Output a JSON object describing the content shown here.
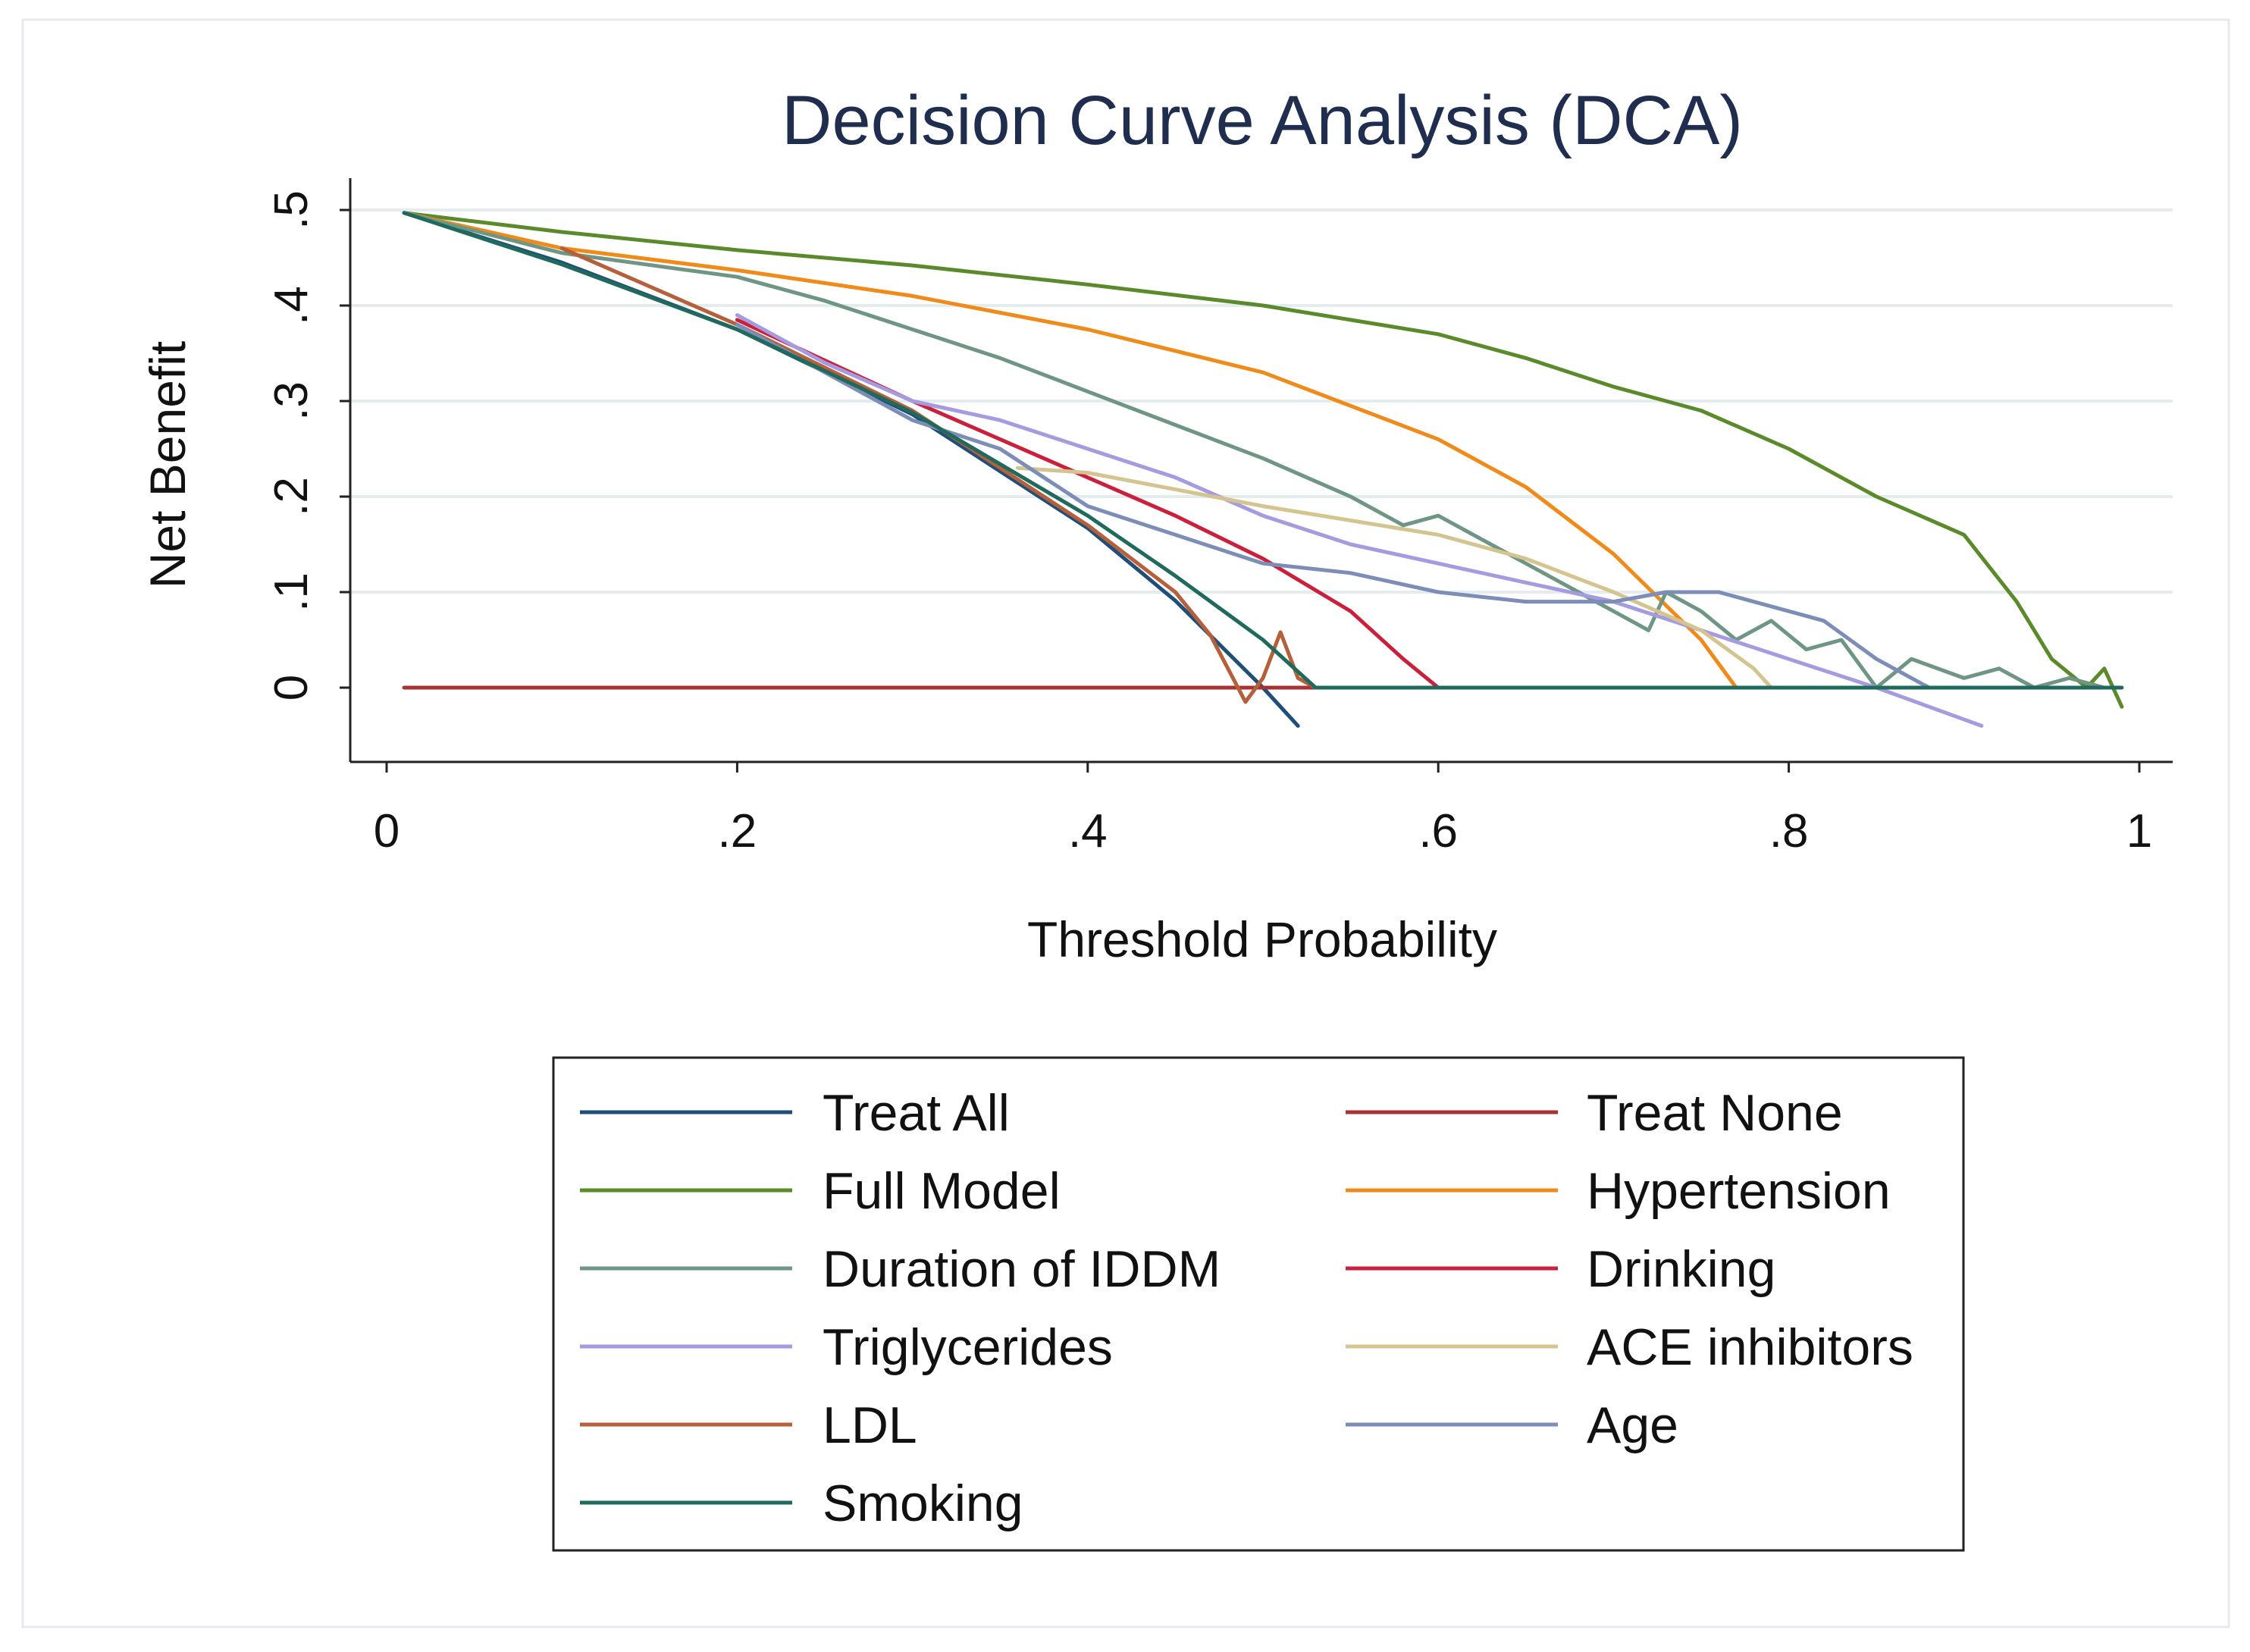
{
  "chart_data": {
    "type": "line",
    "title": "Decision Curve Analysis (DCA)",
    "xlabel": "Threshold Probability",
    "ylabel": "Net Benefit",
    "xlim": [
      0,
      1
    ],
    "ylim": [
      -0.08,
      0.52
    ],
    "xticks": [
      {
        "value": 0,
        "label": "0"
      },
      {
        "value": 0.2,
        "label": ".2"
      },
      {
        "value": 0.4,
        "label": ".4"
      },
      {
        "value": 0.6,
        "label": ".6"
      },
      {
        "value": 0.8,
        "label": ".8"
      },
      {
        "value": 1,
        "label": "1"
      }
    ],
    "yticks": [
      {
        "value": 0,
        "label": "0"
      },
      {
        "value": 0.1,
        "label": ".1"
      },
      {
        "value": 0.2,
        "label": ".2"
      },
      {
        "value": 0.3,
        "label": ".3"
      },
      {
        "value": 0.4,
        "label": ".4"
      },
      {
        "value": 0.5,
        "label": ".5"
      }
    ],
    "grid": "horizontal",
    "legend_position": "bottom",
    "series": [
      {
        "name": "Treat All",
        "color": "#1f4e79",
        "points": [
          [
            0.01,
            0.497
          ],
          [
            0.1,
            0.445
          ],
          [
            0.2,
            0.375
          ],
          [
            0.3,
            0.286
          ],
          [
            0.4,
            0.167
          ],
          [
            0.45,
            0.091
          ],
          [
            0.5,
            0.0
          ],
          [
            0.52,
            -0.04
          ]
        ]
      },
      {
        "name": "Treat None",
        "color": "#a83232",
        "points": [
          [
            0.01,
            0
          ],
          [
            0.53,
            0
          ]
        ]
      },
      {
        "name": "Full Model",
        "color": "#5a8a2a",
        "points": [
          [
            0.01,
            0.497
          ],
          [
            0.1,
            0.477
          ],
          [
            0.2,
            0.458
          ],
          [
            0.3,
            0.442
          ],
          [
            0.4,
            0.422
          ],
          [
            0.5,
            0.4
          ],
          [
            0.6,
            0.37
          ],
          [
            0.65,
            0.345
          ],
          [
            0.7,
            0.315
          ],
          [
            0.75,
            0.29
          ],
          [
            0.8,
            0.25
          ],
          [
            0.85,
            0.2
          ],
          [
            0.9,
            0.16
          ],
          [
            0.93,
            0.09
          ],
          [
            0.95,
            0.03
          ],
          [
            0.97,
            0.0
          ],
          [
            0.98,
            0.02
          ],
          [
            0.99,
            -0.02
          ]
        ]
      },
      {
        "name": "Hypertension",
        "color": "#f08a18",
        "points": [
          [
            0.01,
            0.497
          ],
          [
            0.1,
            0.46
          ],
          [
            0.2,
            0.437
          ],
          [
            0.3,
            0.41
          ],
          [
            0.4,
            0.375
          ],
          [
            0.5,
            0.33
          ],
          [
            0.6,
            0.26
          ],
          [
            0.65,
            0.21
          ],
          [
            0.7,
            0.14
          ],
          [
            0.75,
            0.05
          ],
          [
            0.77,
            0.0
          ],
          [
            0.78,
            0.0
          ]
        ]
      },
      {
        "name": "Duration of IDDM",
        "color": "#6f9684",
        "points": [
          [
            0.01,
            0.497
          ],
          [
            0.1,
            0.455
          ],
          [
            0.2,
            0.43
          ],
          [
            0.25,
            0.405
          ],
          [
            0.3,
            0.375
          ],
          [
            0.35,
            0.345
          ],
          [
            0.4,
            0.31
          ],
          [
            0.45,
            0.275
          ],
          [
            0.5,
            0.24
          ],
          [
            0.55,
            0.2
          ],
          [
            0.58,
            0.17
          ],
          [
            0.6,
            0.18
          ],
          [
            0.63,
            0.15
          ],
          [
            0.65,
            0.13
          ],
          [
            0.68,
            0.1
          ],
          [
            0.7,
            0.08
          ],
          [
            0.72,
            0.06
          ],
          [
            0.73,
            0.1
          ],
          [
            0.75,
            0.08
          ],
          [
            0.77,
            0.05
          ],
          [
            0.79,
            0.07
          ],
          [
            0.81,
            0.04
          ],
          [
            0.83,
            0.05
          ],
          [
            0.85,
            0.0
          ],
          [
            0.87,
            0.03
          ],
          [
            0.9,
            0.01
          ],
          [
            0.92,
            0.02
          ],
          [
            0.94,
            0.0
          ],
          [
            0.96,
            0.01
          ],
          [
            0.98,
            0.0
          ]
        ]
      },
      {
        "name": "Drinking",
        "color": "#cc1f3c",
        "points": [
          [
            0.2,
            0.385
          ],
          [
            0.3,
            0.3
          ],
          [
            0.4,
            0.22
          ],
          [
            0.45,
            0.18
          ],
          [
            0.5,
            0.135
          ],
          [
            0.55,
            0.08
          ],
          [
            0.58,
            0.03
          ],
          [
            0.6,
            0.0
          ]
        ]
      },
      {
        "name": "Triglycerides",
        "color": "#a69be0",
        "points": [
          [
            0.2,
            0.39
          ],
          [
            0.25,
            0.34
          ],
          [
            0.3,
            0.3
          ],
          [
            0.35,
            0.28
          ],
          [
            0.4,
            0.25
          ],
          [
            0.45,
            0.22
          ],
          [
            0.5,
            0.18
          ],
          [
            0.55,
            0.15
          ],
          [
            0.6,
            0.13
          ],
          [
            0.65,
            0.11
          ],
          [
            0.7,
            0.09
          ],
          [
            0.75,
            0.06
          ],
          [
            0.8,
            0.03
          ],
          [
            0.85,
            0.0
          ],
          [
            0.88,
            -0.02
          ],
          [
            0.91,
            -0.04
          ]
        ]
      },
      {
        "name": "ACE inhibitors",
        "color": "#d4c48f",
        "points": [
          [
            0.36,
            0.23
          ],
          [
            0.4,
            0.225
          ],
          [
            0.5,
            0.19
          ],
          [
            0.6,
            0.16
          ],
          [
            0.65,
            0.135
          ],
          [
            0.7,
            0.1
          ],
          [
            0.75,
            0.06
          ],
          [
            0.78,
            0.02
          ],
          [
            0.79,
            0.0
          ]
        ]
      },
      {
        "name": "LDL",
        "color": "#b5603a",
        "points": [
          [
            0.1,
            0.46
          ],
          [
            0.2,
            0.38
          ],
          [
            0.3,
            0.29
          ],
          [
            0.4,
            0.17
          ],
          [
            0.45,
            0.1
          ],
          [
            0.47,
            0.055
          ],
          [
            0.48,
            0.02
          ],
          [
            0.49,
            -0.015
          ],
          [
            0.5,
            0.01
          ],
          [
            0.51,
            0.058
          ],
          [
            0.52,
            0.01
          ],
          [
            0.53,
            0.0
          ]
        ]
      },
      {
        "name": "Age",
        "color": "#7c8db8",
        "points": [
          [
            0.2,
            0.38
          ],
          [
            0.3,
            0.28
          ],
          [
            0.35,
            0.25
          ],
          [
            0.4,
            0.19
          ],
          [
            0.45,
            0.16
          ],
          [
            0.5,
            0.13
          ],
          [
            0.55,
            0.12
          ],
          [
            0.6,
            0.1
          ],
          [
            0.65,
            0.09
          ],
          [
            0.7,
            0.09
          ],
          [
            0.73,
            0.1
          ],
          [
            0.76,
            0.1
          ],
          [
            0.8,
            0.08
          ],
          [
            0.82,
            0.07
          ],
          [
            0.85,
            0.03
          ],
          [
            0.88,
            0.0
          ],
          [
            0.9,
            0.0
          ]
        ]
      },
      {
        "name": "Smoking",
        "color": "#1f6a5c",
        "points": [
          [
            0.01,
            0.497
          ],
          [
            0.1,
            0.443
          ],
          [
            0.2,
            0.375
          ],
          [
            0.3,
            0.288
          ],
          [
            0.4,
            0.18
          ],
          [
            0.45,
            0.117
          ],
          [
            0.5,
            0.05
          ],
          [
            0.53,
            0.0
          ],
          [
            0.99,
            0.0
          ]
        ]
      }
    ],
    "legend_order": [
      "Treat All",
      "Treat None",
      "Full Model",
      "Hypertension",
      "Duration of IDDM",
      "Drinking",
      "Triglycerides",
      "ACE inhibitors",
      "LDL",
      "Age",
      "Smoking"
    ]
  }
}
